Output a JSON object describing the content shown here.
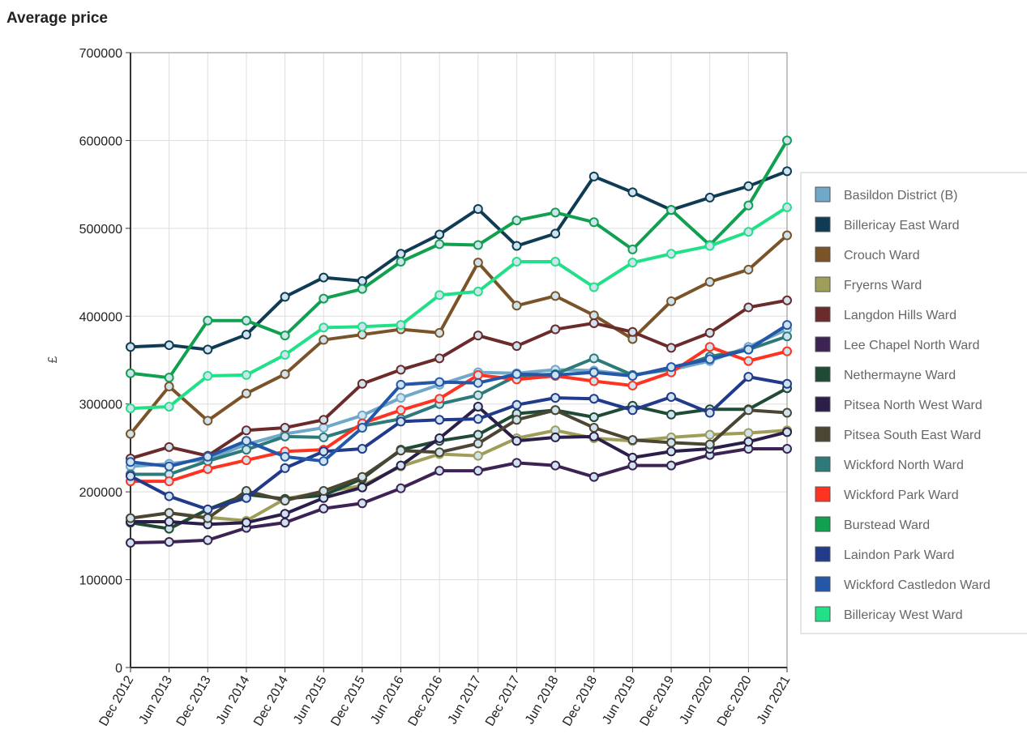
{
  "chart_data": {
    "type": "line",
    "title": "Average price",
    "y_label": "£",
    "categories": [
      "Dec 2012",
      "Jun 2013",
      "Dec 2013",
      "Jun 2014",
      "Dec 2014",
      "Jun 2015",
      "Dec 2015",
      "Jun 2016",
      "Dec 2016",
      "Jun 2017",
      "Dec 2017",
      "Jun 2018",
      "Dec 2018",
      "Jun 2019",
      "Dec 2019",
      "Jun 2020",
      "Dec 2020",
      "Jun 2021"
    ],
    "ylim": [
      0,
      700000
    ],
    "yticks": [
      0,
      100000,
      200000,
      300000,
      400000,
      500000,
      600000,
      700000
    ],
    "grid": true,
    "series": [
      {
        "name": "Basildon District (B)",
        "color": "#6fa8c8",
        "values": [
          229000,
          232000,
          237000,
          254000,
          266000,
          273000,
          287000,
          307000,
          322000,
          336000,
          335000,
          339000,
          338000,
          333000,
          339000,
          349000,
          365000,
          385000
        ]
      },
      {
        "name": "Billericay East Ward",
        "color": "#0f3c54",
        "values": [
          365000,
          367000,
          362000,
          379000,
          422000,
          444000,
          440000,
          471000,
          493000,
          522000,
          480000,
          494000,
          559000,
          541000,
          521000,
          535000,
          548000,
          565000
        ]
      },
      {
        "name": "Crouch Ward",
        "color": "#7a5428",
        "values": [
          266000,
          320000,
          281000,
          312000,
          334000,
          373000,
          379000,
          385000,
          381000,
          461000,
          412000,
          423000,
          401000,
          374000,
          417000,
          439000,
          453000,
          492000
        ]
      },
      {
        "name": "Fryerns Ward",
        "color": "#9e9e5a",
        "values": [
          170000,
          176000,
          171000,
          167000,
          192000,
          200000,
          207000,
          229000,
          243000,
          241000,
          261000,
          270000,
          261000,
          258000,
          262000,
          265000,
          267000,
          270000
        ]
      },
      {
        "name": "Langdon Hills Ward",
        "color": "#6b2b2b",
        "values": [
          238000,
          251000,
          241000,
          270000,
          273000,
          282000,
          323000,
          339000,
          352000,
          378000,
          366000,
          385000,
          392000,
          382000,
          364000,
          381000,
          410000,
          418000
        ]
      },
      {
        "name": "Lee Chapel North Ward",
        "color": "#3c2353",
        "values": [
          142000,
          143000,
          145000,
          159000,
          165000,
          181000,
          187000,
          204000,
          224000,
          224000,
          233000,
          230000,
          217000,
          230000,
          230000,
          242000,
          249000,
          249000
        ]
      },
      {
        "name": "Nethermayne Ward",
        "color": "#1f4a35",
        "values": [
          165000,
          158000,
          180000,
          197000,
          192000,
          196000,
          215000,
          248000,
          258000,
          265000,
          289000,
          293000,
          285000,
          298000,
          288000,
          294000,
          294000,
          318000
        ]
      },
      {
        "name": "Pitsea North West Ward",
        "color": "#2b1f4a",
        "values": [
          166000,
          166000,
          163000,
          165000,
          175000,
          193000,
          205000,
          230000,
          261000,
          297000,
          258000,
          262000,
          263000,
          239000,
          246000,
          249000,
          257000,
          268000
        ]
      },
      {
        "name": "Pitsea South East Ward",
        "color": "#4a4633",
        "values": [
          170000,
          176000,
          170000,
          201000,
          190000,
          201000,
          217000,
          247000,
          245000,
          255000,
          282000,
          293000,
          273000,
          259000,
          256000,
          254000,
          293000,
          290000
        ]
      },
      {
        "name": "Wickford North Ward",
        "color": "#2e7a7a",
        "values": [
          220000,
          220000,
          235000,
          248000,
          263000,
          262000,
          275000,
          283000,
          300000,
          310000,
          332000,
          334000,
          352000,
          333000,
          340000,
          354000,
          362000,
          377000
        ]
      },
      {
        "name": "Wickford Park Ward",
        "color": "#ff3322",
        "values": [
          212000,
          212000,
          226000,
          236000,
          246000,
          248000,
          278000,
          293000,
          306000,
          333000,
          328000,
          332000,
          326000,
          321000,
          336000,
          365000,
          349000,
          360000
        ]
      },
      {
        "name": "Burstead Ward",
        "color": "#10a050",
        "values": [
          335000,
          330000,
          395000,
          395000,
          378000,
          420000,
          431000,
          462000,
          482000,
          481000,
          509000,
          518000,
          507000,
          476000,
          521000,
          481000,
          526000,
          600000
        ]
      },
      {
        "name": "Laindon Park Ward",
        "color": "#223a8a",
        "values": [
          218000,
          195000,
          180000,
          193000,
          227000,
          246000,
          249000,
          280000,
          282000,
          283000,
          299000,
          307000,
          306000,
          293000,
          308000,
          290000,
          331000,
          323000
        ]
      },
      {
        "name": "Wickford Castledon Ward",
        "color": "#2457a8",
        "values": [
          234000,
          229000,
          240000,
          258000,
          240000,
          235000,
          273000,
          322000,
          325000,
          324000,
          334000,
          333000,
          336000,
          332000,
          342000,
          351000,
          362000,
          390000
        ]
      },
      {
        "name": "Billericay West Ward",
        "color": "#22e088",
        "values": [
          295000,
          297000,
          332000,
          333000,
          356000,
          387000,
          388000,
          390000,
          424000,
          428000,
          462000,
          462000,
          433000,
          461000,
          471000,
          480000,
          496000,
          524000
        ]
      }
    ]
  }
}
